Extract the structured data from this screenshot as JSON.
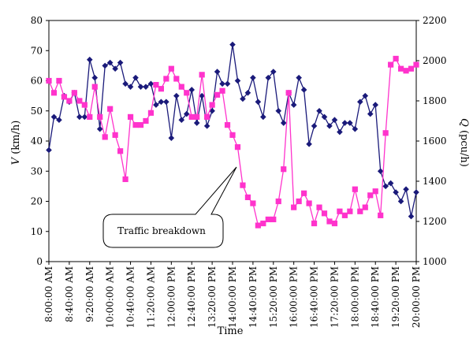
{
  "chart_data": {
    "type": "line",
    "xlabel": "Time",
    "ylabel_left": {
      "symbol": "V",
      "unit": " (km/h)"
    },
    "ylabel_right": {
      "symbol": "Q",
      "unit": " (pcu/h)"
    },
    "ylim_left": [
      0,
      80
    ],
    "ylim_right": [
      1000,
      2200
    ],
    "yticks_left": [
      "0",
      "10",
      "20",
      "30",
      "40",
      "50",
      "60",
      "70",
      "80"
    ],
    "yticks_right": [
      "1000",
      "1200",
      "1400",
      "1600",
      "1800",
      "2000",
      "2200"
    ],
    "x_tick_labels": [
      "8:00:00 AM",
      "8:40:00 AM",
      "9:20:00 AM",
      "10:00:00 AM",
      "10:40:00 AM",
      "11:20:00 AM",
      "12:00:00 PM",
      "12:40:00 PM",
      "13:20:00 PM",
      "14:00:00 PM",
      "14:40:00 PM",
      "15:20:00 PM",
      "16:00:00 PM",
      "16:40:00 PM",
      "17:20:00 PM",
      "18:00:00 PM",
      "18:40:00 PM",
      "19:20:00 PM",
      "20:00:00 PM"
    ],
    "x_start_label": "8:00:00 AM",
    "x_end_label": "20:00:00 PM",
    "annotation": {
      "text": "Traffic breakdown"
    },
    "series": [
      {
        "axis": "left",
        "color": "#1a1a7a",
        "marker": "diamond",
        "values": [
          37,
          48,
          47,
          55,
          53,
          56,
          48,
          48,
          67,
          61,
          44,
          65,
          66,
          64,
          66,
          59,
          58,
          61,
          58,
          58,
          59,
          52,
          53,
          53,
          41,
          55,
          47,
          49,
          57,
          46,
          55,
          45,
          50,
          63,
          59,
          59,
          72,
          60,
          54,
          56,
          61,
          53,
          48,
          61,
          63,
          50,
          46,
          56,
          52,
          61,
          57,
          39,
          45,
          50,
          48,
          45,
          47,
          43,
          46,
          46,
          44,
          53,
          55,
          49,
          52,
          30,
          25,
          26,
          23,
          20,
          24,
          15,
          23
        ],
        "x_positions": "evenly spaced 8:00:00 AM to 20:00:00 PM"
      },
      {
        "axis": "right",
        "color": "#ff33cc",
        "marker": "square",
        "values": [
          1900,
          1840,
          1900,
          1820,
          1800,
          1840,
          1800,
          1780,
          1720,
          1870,
          1720,
          1620,
          1760,
          1630,
          1550,
          1410,
          1720,
          1680,
          1680,
          1700,
          1740,
          1880,
          1860,
          1910,
          1960,
          1910,
          1870,
          1840,
          1720,
          1720,
          1930,
          1720,
          1780,
          1830,
          1850,
          1680,
          1630,
          1570,
          1380,
          1320,
          1290,
          1180,
          1190,
          1210,
          1210,
          1300,
          1460,
          1840,
          1270,
          1300,
          1340,
          1290,
          1190,
          1270,
          1240,
          1200,
          1190,
          1250,
          1230,
          1250,
          1360,
          1250,
          1270,
          1330,
          1350,
          1230,
          1640,
          1980,
          2010,
          1960,
          1950,
          1960,
          1980
        ],
        "x_positions": "evenly spaced 8:00:00 AM to 20:00:00 PM"
      }
    ],
    "legend": "none",
    "grid": false
  }
}
